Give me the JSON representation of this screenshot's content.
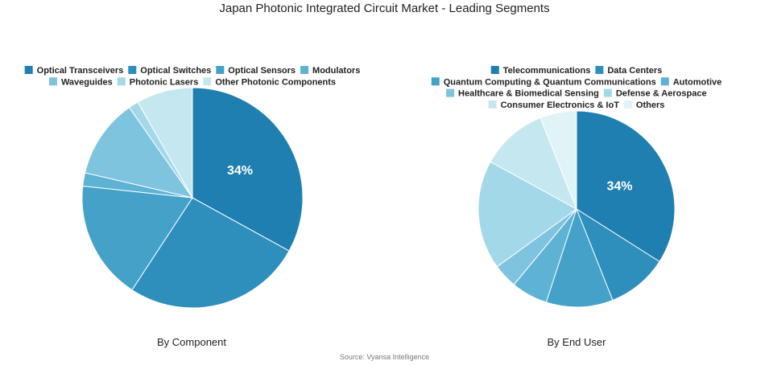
{
  "title": "Japan Photonic Integrated Circuit Market - Leading Segments",
  "source": "Source: Vyansa Intelligence",
  "colors": [
    "#1f7fb0",
    "#2e8fbd",
    "#44a2c9",
    "#5eb2d4",
    "#7fc4de",
    "#a3d8e8",
    "#c5e8f0",
    "#e0f4f8"
  ],
  "chart_data": [
    {
      "type": "pie",
      "caption": "By Component",
      "label_shown": "34%",
      "categories": [
        "Optical Transceivers",
        "Optical Switches",
        "Optical Sensors",
        "Modulators",
        "Waveguides",
        "Photonic Lasers",
        "Other Photonic Components"
      ],
      "values": [
        34,
        27,
        18,
        2,
        12,
        1.5,
        8.5
      ],
      "colors": [
        "#1f7fb0",
        "#2e8fbd",
        "#44a2c9",
        "#5eb2d4",
        "#7fc4de",
        "#a3d8e8",
        "#c5e8f0"
      ]
    },
    {
      "type": "pie",
      "caption": "By End User",
      "label_shown": "34%",
      "categories": [
        "Telecommunications",
        "Data Centers",
        "Quantum Computing & Quantum Communications",
        "Automotive",
        "Healthcare & Biomedical Sensing",
        "Defense & Aerospace",
        "Consumer Electronics & IoT",
        "Others"
      ],
      "values": [
        34,
        10,
        11,
        6,
        4,
        18,
        11,
        6
      ],
      "colors": [
        "#1f7fb0",
        "#2e8fbd",
        "#44a2c9",
        "#5eb2d4",
        "#7fc4de",
        "#a3d8e8",
        "#c5e8f0",
        "#e0f4f8"
      ]
    }
  ]
}
